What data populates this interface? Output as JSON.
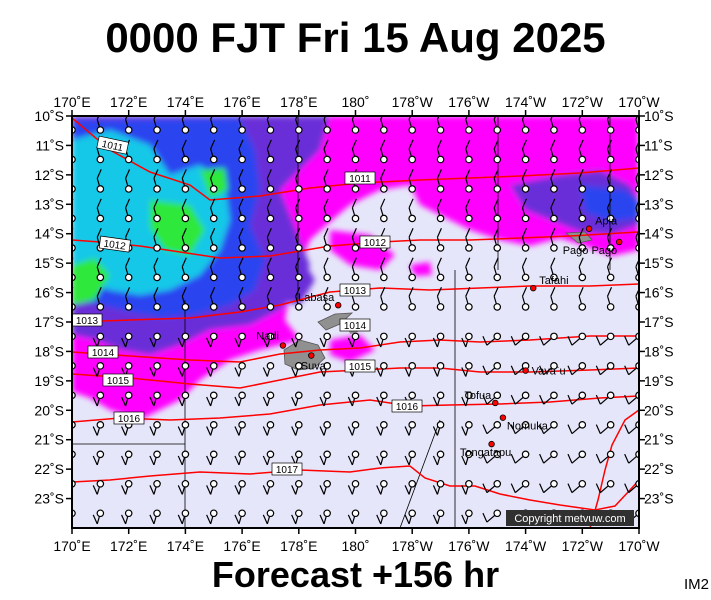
{
  "header": {
    "title": "0000 FJT Fri 15 Aug 2025"
  },
  "footer": {
    "forecast_label": "Forecast +156 hr",
    "image_tag": "IM2"
  },
  "map": {
    "copyright": "Copyright metvuw.com",
    "colors": {
      "background": "#e6e6fa",
      "precip_light": "#ff00ff",
      "precip_med": "#6a2fd8",
      "precip_heavy": "#2a44f0",
      "precip_very_heavy": "#17c8e8",
      "precip_extreme": "#2de83a",
      "isobar": "#ff0000",
      "land": "#909090",
      "marker": "#ff0000"
    },
    "lon_labels_top": [
      "170˚E",
      "172˚E",
      "174˚E",
      "176˚E",
      "178˚E",
      "180˚",
      "178˚W",
      "176˚W",
      "174˚W",
      "172˚W",
      "170˚W"
    ],
    "lon_labels_bottom": [
      "170˚E",
      "172˚E",
      "174˚E",
      "176˚E",
      "178˚E",
      "180˚",
      "178˚W",
      "176˚W",
      "174˚W",
      "172˚W",
      "170˚W"
    ],
    "lat_labels": [
      "10˚S",
      "11˚S",
      "12˚S",
      "13˚S",
      "14˚S",
      "15˚S",
      "16˚S",
      "17˚S",
      "18˚S",
      "19˚S",
      "20˚S",
      "21˚S",
      "22˚S",
      "23˚S"
    ],
    "isobars": [
      {
        "label": "1011",
        "value": 1011
      },
      {
        "label": "1011",
        "value": 1011
      },
      {
        "label": "1012",
        "value": 1012
      },
      {
        "label": "1012",
        "value": 1012
      },
      {
        "label": "1013",
        "value": 1013
      },
      {
        "label": "1013",
        "value": 1013
      },
      {
        "label": "1014",
        "value": 1014
      },
      {
        "label": "1014",
        "value": 1014
      },
      {
        "label": "1015",
        "value": 1015
      },
      {
        "label": "1015",
        "value": 1015
      },
      {
        "label": "1016",
        "value": 1016
      },
      {
        "label": "1016",
        "value": 1016
      },
      {
        "label": "1017",
        "value": 1017
      }
    ],
    "places": [
      {
        "name": "Apia",
        "lon": -171.76,
        "lat": -13.83
      },
      {
        "name": "Pago Pago",
        "lon": -170.7,
        "lat": -14.28
      },
      {
        "name": "Tafahi",
        "lon": -173.73,
        "lat": -15.85
      },
      {
        "name": "Labasa",
        "lon": 179.39,
        "lat": -16.43
      },
      {
        "name": "Nadi",
        "lon": 177.44,
        "lat": -17.8
      },
      {
        "name": "Suva",
        "lon": 178.44,
        "lat": -18.14
      },
      {
        "name": "Vava`u",
        "lon": -174.0,
        "lat": -18.65
      },
      {
        "name": "Tofua",
        "lon": -175.07,
        "lat": -19.75
      },
      {
        "name": "Nomuka",
        "lon": -174.8,
        "lat": -20.25
      },
      {
        "name": "Tongatapu",
        "lon": -175.2,
        "lat": -21.15
      }
    ]
  }
}
